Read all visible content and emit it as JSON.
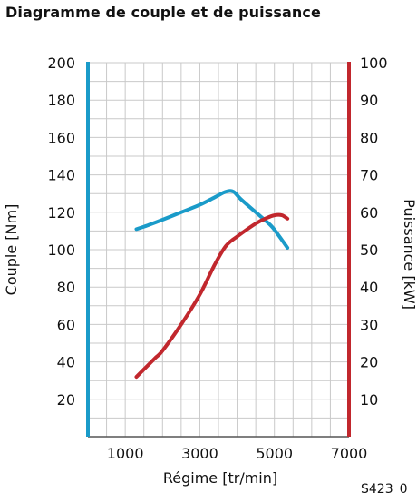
{
  "title": "Diagramme de couple et de puissance",
  "figure_id": "S423_0",
  "chart_data": {
    "type": "line",
    "title": "Diagramme de couple et de puissance",
    "xlabel": "Régime [tr/min]",
    "ylabel_left": "Couple [Nm]",
    "ylabel_right": "Puissance [kW]",
    "xlim": [
      0,
      7000
    ],
    "ylim_left": [
      0,
      200
    ],
    "ylim_right": [
      0,
      100
    ],
    "x_ticks": [
      1000,
      3000,
      5000,
      7000
    ],
    "y_ticks_left": [
      20,
      40,
      60,
      80,
      100,
      120,
      140,
      160,
      180,
      200
    ],
    "y_ticks_right": [
      10,
      20,
      30,
      40,
      50,
      60,
      70,
      80,
      90,
      100
    ],
    "grid": true,
    "series": [
      {
        "axis": "left",
        "color": "#1a9bc9",
        "x": [
          1300,
          1600,
          2000,
          2500,
          3000,
          3400,
          3700,
          3900,
          4100,
          4500,
          4900,
          5100,
          5350
        ],
        "y": [
          111,
          113,
          116,
          120,
          124,
          128,
          131,
          131,
          127,
          120,
          113,
          108,
          101
        ]
      },
      {
        "axis": "right",
        "color": "#c1272d",
        "x": [
          1300,
          1500,
          1800,
          2000,
          2500,
          3000,
          3400,
          3700,
          4000,
          4500,
          4800,
          5000,
          5200,
          5350
        ],
        "y": [
          16,
          18,
          21,
          23,
          30,
          38,
          46,
          51,
          53.5,
          57,
          58.5,
          59.2,
          59.2,
          58.3
        ]
      }
    ]
  }
}
